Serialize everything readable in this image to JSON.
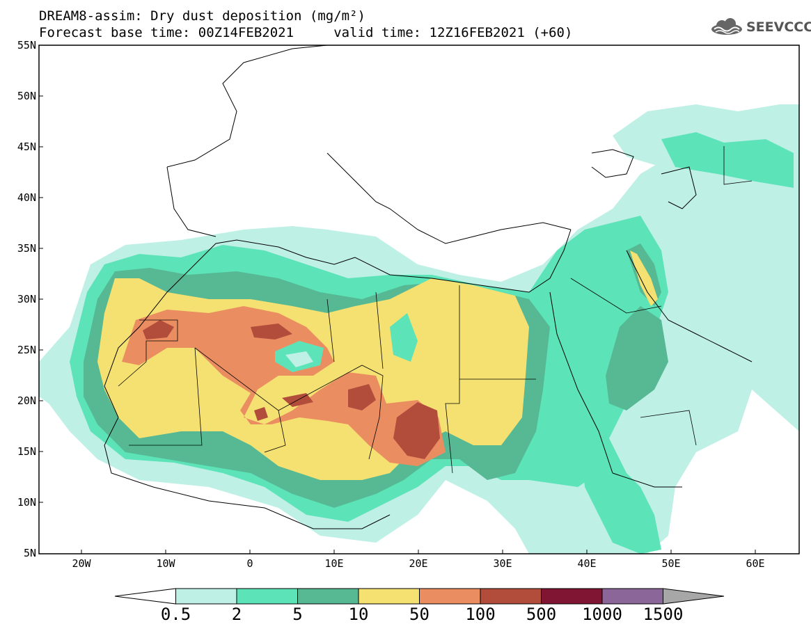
{
  "header": {
    "title_line1": "DREAM8-assim: Dry dust deposition (mg/m²)",
    "title_line2": "Forecast base time: 00Z14FEB2021     valid time: 12Z16FEB2021 (+60)"
  },
  "logo": {
    "text": "SEEVCCC",
    "icon": "cloud-icon"
  },
  "map": {
    "lat_labels": [
      "55N",
      "50N",
      "45N",
      "40N",
      "35N",
      "30N",
      "25N",
      "20N",
      "15N",
      "10N",
      "5N"
    ],
    "lon_labels": [
      "20W",
      "10W",
      "0",
      "10E",
      "20E",
      "30E",
      "40E",
      "50E",
      "60E"
    ]
  },
  "colorbar": {
    "labels": [
      "0.5",
      "2",
      "5",
      "10",
      "50",
      "100",
      "500",
      "1000",
      "1500"
    ],
    "colors": [
      "#ffffff",
      "#bff0e6",
      "#5ce3b7",
      "#56b994",
      "#f5e171",
      "#ea8e62",
      "#b24d3c",
      "#7f1533",
      "#8b6699",
      "#a7a7a7"
    ]
  }
}
